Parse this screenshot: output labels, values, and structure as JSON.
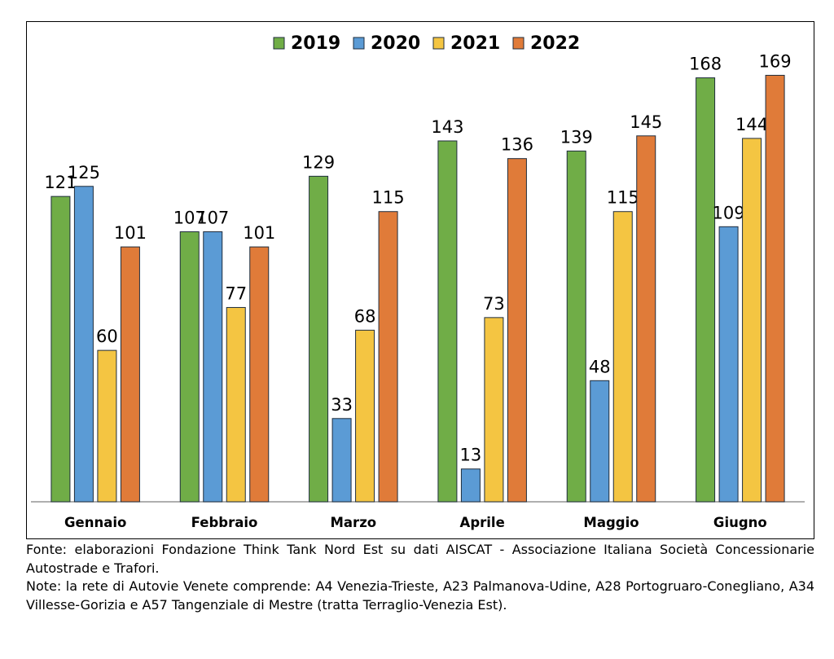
{
  "chart_data": {
    "type": "bar",
    "categories": [
      "Gennaio",
      "Febbraio",
      "Marzo",
      "Aprile",
      "Maggio",
      "Giugno"
    ],
    "series": [
      {
        "name": "2019",
        "color": "#70ad47",
        "values": [
          121,
          107,
          129,
          143,
          139,
          168
        ]
      },
      {
        "name": "2020",
        "color": "#5b9bd5",
        "values": [
          125,
          107,
          33,
          13,
          48,
          109
        ]
      },
      {
        "name": "2021",
        "color": "#f4c542",
        "values": [
          60,
          77,
          68,
          73,
          115,
          144
        ]
      },
      {
        "name": "2022",
        "color": "#e07b39",
        "values": [
          101,
          101,
          115,
          136,
          145,
          169
        ]
      }
    ],
    "ylim": [
      0,
      170
    ],
    "legend": "top-center",
    "grid": false,
    "data_labels": true
  },
  "notes": {
    "source": "Fonte: elaborazioni Fondazione Think Tank Nord Est su dati AISCAT - Associazione Italiana Società Concessionarie Autostrade e Trafori.",
    "note": "Note: la rete di Autovie Venete comprende: A4 Venezia-Trieste, A23 Palmanova-Udine, A28 Portogruaro-Conegliano, A34 Villesse-Gorizia e A57 Tangenziale di Mestre (tratta Terraglio-Venezia Est)."
  }
}
